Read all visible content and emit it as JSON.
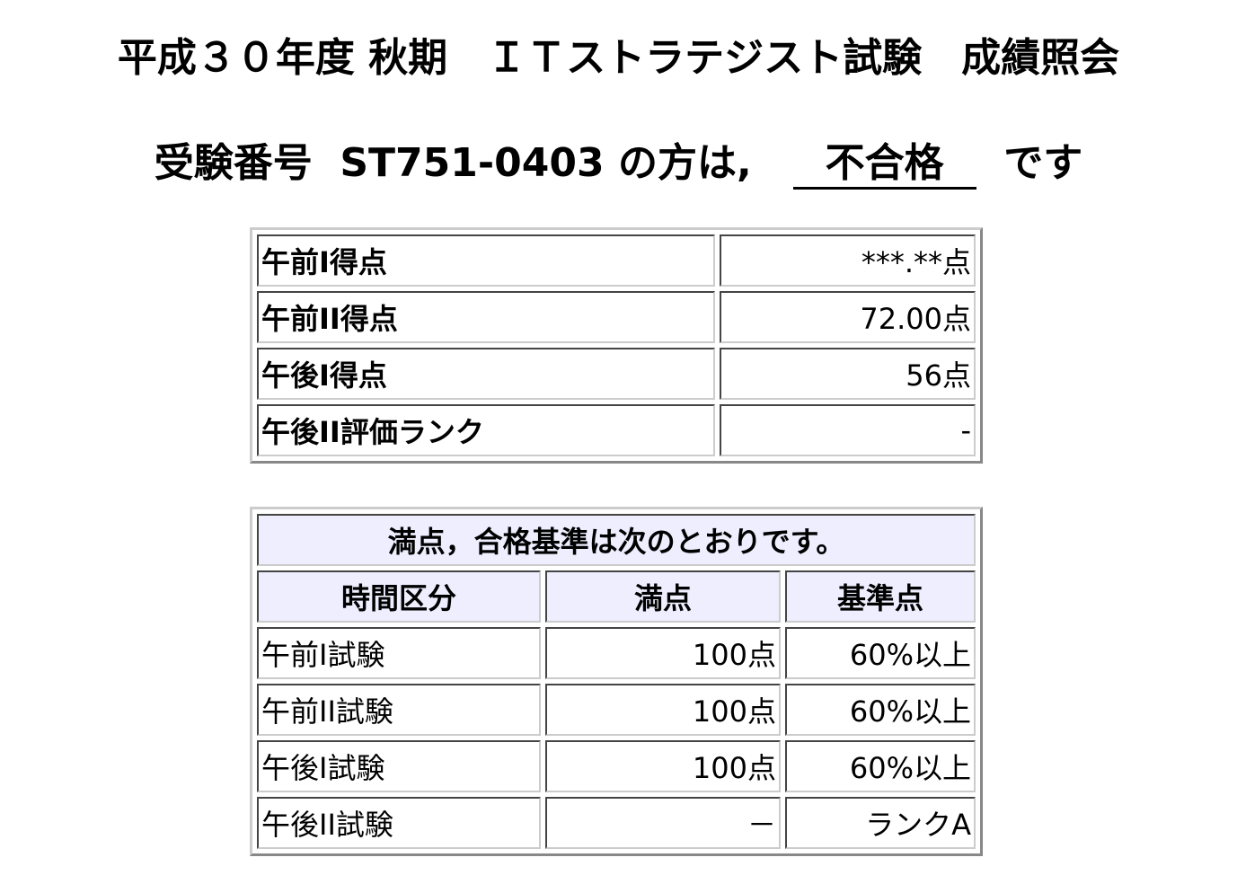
{
  "title": "平成３０年度 秋期　ＩＴストラテジスト試験　成績照会",
  "result": {
    "prefix": "受験番号",
    "exam_number": "ST751-0403",
    "middle": "の方は,",
    "verdict": "不合格",
    "suffix": "です"
  },
  "scores": [
    {
      "label": "午前I得点",
      "value": "***.**点"
    },
    {
      "label": "午前II得点",
      "value": "72.00点"
    },
    {
      "label": "午後I得点",
      "value": "56点"
    },
    {
      "label": "午後II評価ランク",
      "value": "-"
    }
  ],
  "criteria": {
    "caption": "満点，合格基準は次のとおりです。",
    "headers": [
      "時間区分",
      "満点",
      "基準点"
    ],
    "rows": [
      [
        "午前I試験",
        "100点",
        "60%以上"
      ],
      [
        "午前II試験",
        "100点",
        "60%以上"
      ],
      [
        "午後I試験",
        "100点",
        "60%以上"
      ],
      [
        "午後II試験",
        "－",
        "ランクA"
      ]
    ]
  },
  "colors": {
    "header_bg": "#eeeeff"
  }
}
